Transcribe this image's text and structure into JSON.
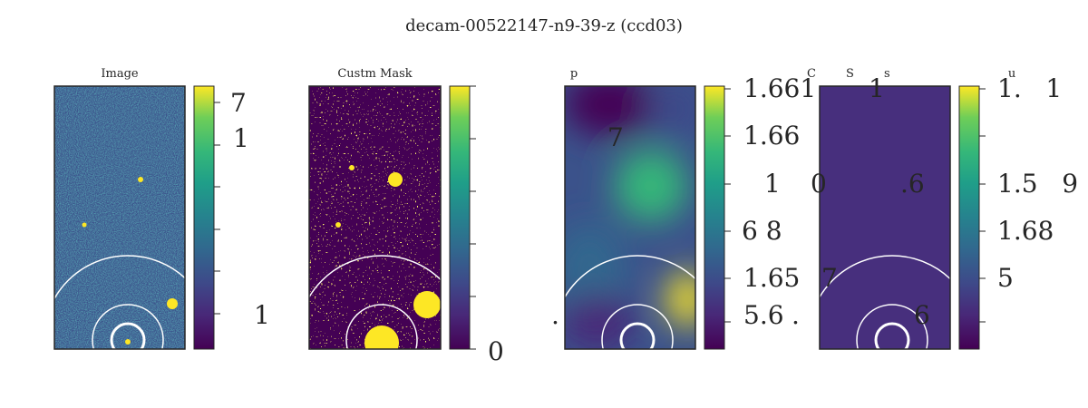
{
  "figure": {
    "title": "decam-00522147-n9-39-z (ccd03)"
  },
  "chart_data": [
    {
      "type": "heatmap",
      "title": "Image",
      "colormap": "viridis",
      "colorbar_ticks": [
        "7",
        "1",
        "1"
      ],
      "stray_text": []
    },
    {
      "type": "heatmap",
      "title": "Custm Mask",
      "colormap": "viridis",
      "colorbar_ticks": [
        "0"
      ],
      "stray_text": []
    },
    {
      "type": "heatmap",
      "title": "p",
      "colormap": "viridis",
      "colorbar_ticks": [
        "1.661",
        "1.66",
        "1",
        "6 8",
        "1.65",
        "5.6"
      ],
      "stray_text": [
        "7",
        ".",
        "."
      ]
    },
    {
      "type": "heatmap",
      "title": "C        S        s",
      "colormap": "viridis",
      "colorbar_ticks": [
        "1.   1",
        "1.5   9",
        "1.68",
        "5"
      ],
      "colorbar_label": "u",
      "stray_text": [
        "1",
        "0",
        ".6",
        "7",
        "6"
      ]
    }
  ],
  "colors": {
    "viridis_dark": "#440154",
    "viridis_mid": "#21918c",
    "viridis_bright": "#fde725",
    "mask_bg": "#440154",
    "mask_fg": "#fde725",
    "flat_panel": "#472f7d",
    "frame": "#262626",
    "circle": "#ffffff"
  }
}
